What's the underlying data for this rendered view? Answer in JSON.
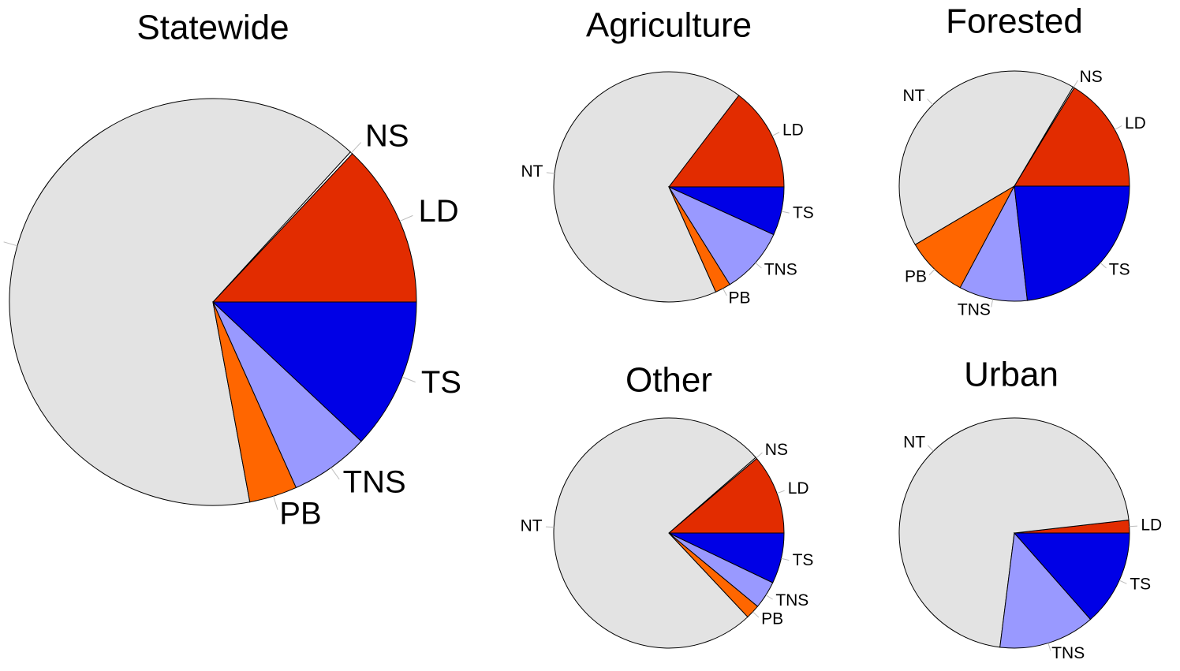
{
  "chart_data": [
    {
      "type": "pie",
      "title": "Statewide",
      "categories": [
        "LD",
        "NS",
        "NT",
        "PB",
        "TNS",
        "TS"
      ],
      "values": [
        13,
        0.2,
        64.7,
        3.8,
        6.3,
        12
      ],
      "colors": [
        "#e22c00",
        "#ffffff",
        "#e3e3e3",
        "#ff6600",
        "#9999ff",
        "#0000e6"
      ]
    },
    {
      "type": "pie",
      "title": "Agriculture",
      "categories": [
        "LD",
        "NT",
        "PB",
        "TNS",
        "TS"
      ],
      "values": [
        14.6,
        67,
        2.2,
        9.3,
        6.8
      ],
      "colors": [
        "#e22c00",
        "#e3e3e3",
        "#ff6600",
        "#9999ff",
        "#0000e6"
      ]
    },
    {
      "type": "pie",
      "title": "Forested",
      "categories": [
        "LD",
        "NS",
        "NT",
        "PB",
        "TNS",
        "TS"
      ],
      "values": [
        16.3,
        0.2,
        42,
        8.7,
        9.6,
        23.2
      ],
      "colors": [
        "#e22c00",
        "#ffffff",
        "#e3e3e3",
        "#ff6600",
        "#9999ff",
        "#0000e6"
      ]
    },
    {
      "type": "pie",
      "title": "Other",
      "categories": [
        "LD",
        "NS",
        "NT",
        "PB",
        "TNS",
        "TS"
      ],
      "values": [
        11.2,
        0.2,
        75.6,
        2,
        3.9,
        7.1
      ],
      "colors": [
        "#e22c00",
        "#ffffff",
        "#e3e3e3",
        "#ff6600",
        "#9999ff",
        "#0000e6"
      ]
    },
    {
      "type": "pie",
      "title": "Urban",
      "categories": [
        "LD",
        "NT",
        "TNS",
        "TS"
      ],
      "values": [
        1.8,
        71.2,
        13.5,
        13.5
      ],
      "colors": [
        "#e22c00",
        "#e3e3e3",
        "#9999ff",
        "#0000e6"
      ]
    }
  ]
}
